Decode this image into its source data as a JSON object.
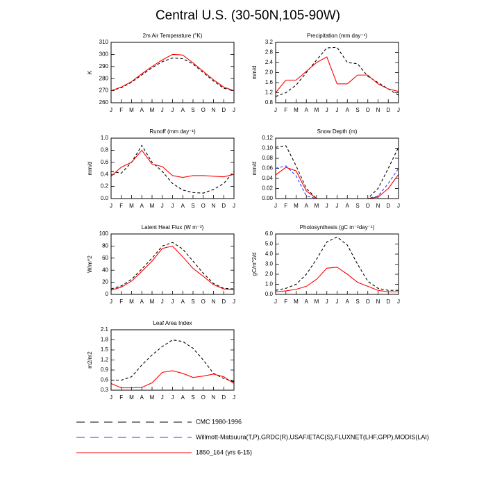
{
  "title": "Central U.S. (30-50N,105-90W)",
  "legend": [
    {
      "name": "CMC 1980-1996",
      "color": "#000000",
      "dash": true
    },
    {
      "name": "Willmott-Matsuura(T,P),GRDC(R),USAF/ETAC(S),FLUXNET(LHF,GPP),MODIS(LAI)",
      "color": "#3333ff",
      "dash": true
    },
    {
      "name": "1850_164 (yrs 6-15)",
      "color": "#ff0000",
      "dash": false
    }
  ],
  "chart_data": [
    {
      "type": "line",
      "title": "2m Air Temperature (°K)",
      "y_label": "K",
      "categories": [
        "J",
        "F",
        "M",
        "A",
        "M",
        "J",
        "J",
        "A",
        "S",
        "O",
        "N",
        "D",
        "J"
      ],
      "ylim": [
        260,
        310
      ],
      "yticks": [
        260,
        270,
        280,
        290,
        300,
        310
      ],
      "series": [
        {
          "color": "#000000",
          "dash": true,
          "values": [
            270,
            272.5,
            277,
            283,
            289,
            294,
            297,
            296.5,
            292,
            285,
            278,
            272,
            270
          ]
        },
        {
          "color": "#ff0000",
          "dash": false,
          "values": [
            270,
            273,
            277.5,
            284,
            290,
            295.5,
            300,
            299.5,
            293,
            286,
            279,
            273,
            270
          ]
        }
      ]
    },
    {
      "type": "line",
      "title": "Precipitation (mm day⁻¹)",
      "y_label": "mm/d",
      "categories": [
        "J",
        "F",
        "M",
        "A",
        "M",
        "J",
        "J",
        "A",
        "S",
        "O",
        "N",
        "D",
        "J"
      ],
      "ylim": [
        0.8,
        3.2
      ],
      "yticks": [
        0.8,
        1.2,
        1.6,
        {
          "value": 2,
          "label": "2.0"
        },
        2.4,
        2.8,
        3.2
      ],
      "series": [
        {
          "color": "#000000",
          "dash": true,
          "values": [
            1.05,
            1.2,
            1.5,
            2.0,
            2.5,
            2.98,
            3.0,
            2.4,
            2.35,
            1.85,
            1.6,
            1.35,
            1.1
          ]
        },
        {
          "color": "#ff0000",
          "dash": false,
          "values": [
            1.2,
            1.7,
            1.7,
            2.05,
            2.4,
            2.62,
            1.55,
            1.55,
            1.9,
            1.9,
            1.55,
            1.35,
            1.25
          ]
        }
      ]
    },
    {
      "type": "line",
      "title": "Runoff (mm day⁻¹)",
      "y_label": "mm/d",
      "categories": [
        "J",
        "F",
        "M",
        "A",
        "M",
        "J",
        "J",
        "A",
        "S",
        "O",
        "N",
        "D",
        "J"
      ],
      "ylim": [
        0,
        1
      ],
      "yticks": [
        {
          "value": 0,
          "label": "0.0"
        },
        0.2,
        0.4,
        0.6,
        0.8,
        {
          "value": 1,
          "label": "1.0"
        }
      ],
      "series": [
        {
          "color": "#000000",
          "dash": true,
          "values": [
            0.45,
            0.42,
            0.6,
            0.88,
            0.6,
            0.45,
            0.25,
            0.14,
            0.1,
            0.09,
            0.15,
            0.25,
            0.45
          ]
        },
        {
          "color": "#ff0000",
          "dash": false,
          "values": [
            0.37,
            0.52,
            0.6,
            0.8,
            0.57,
            0.53,
            0.38,
            0.35,
            0.38,
            0.38,
            0.37,
            0.36,
            0.4
          ]
        }
      ]
    },
    {
      "type": "line",
      "title": "Snow Depth (m)",
      "y_label": "mm/d",
      "categories": [
        "J",
        "F",
        "M",
        "A",
        "M",
        "J",
        "J",
        "A",
        "S",
        "O",
        "N",
        "D",
        "J"
      ],
      "ylim": [
        0,
        0.12
      ],
      "yticks": [
        {
          "value": 0,
          "label": "0.00"
        },
        0.02,
        0.04,
        0.06,
        0.08,
        {
          "value": 0.1,
          "label": "0.10"
        },
        0.12
      ],
      "series": [
        {
          "color": "#000000",
          "dash": true,
          "values": [
            0.102,
            0.105,
            0.065,
            0.02,
            0,
            0,
            0,
            0,
            0,
            0,
            0.02,
            0.06,
            0.102
          ]
        },
        {
          "color": "#3333ff",
          "dash": true,
          "values": [
            0.06,
            0.065,
            0.045,
            0.005,
            0,
            0,
            0,
            0,
            0,
            0,
            0.005,
            0.03,
            0.06
          ]
        },
        {
          "color": "#ff0000",
          "dash": false,
          "values": [
            0.047,
            0.062,
            0.055,
            0.015,
            0,
            0,
            0,
            0,
            0,
            0,
            0.003,
            0.02,
            0.048
          ]
        }
      ]
    },
    {
      "type": "line",
      "title": "Latent Heat Flux (W m⁻²)",
      "y_label": "W/m^2",
      "categories": [
        "J",
        "F",
        "M",
        "A",
        "M",
        "J",
        "J",
        "A",
        "S",
        "O",
        "N",
        "D",
        "J"
      ],
      "ylim": [
        0,
        100
      ],
      "yticks": [
        0,
        20,
        40,
        60,
        80,
        100
      ],
      "series": [
        {
          "color": "#000000",
          "dash": true,
          "values": [
            9,
            14,
            25,
            42,
            60,
            80,
            86,
            75,
            55,
            35,
            18,
            10,
            9
          ]
        },
        {
          "color": "#ff0000",
          "dash": false,
          "values": [
            7,
            12,
            22,
            38,
            55,
            76,
            80,
            62,
            43,
            30,
            16,
            9,
            8
          ]
        }
      ]
    },
    {
      "type": "line",
      "title": "Photosynthesis (gC m⁻²day⁻¹)",
      "y_label": "gC/m^2/d",
      "categories": [
        "J",
        "F",
        "M",
        "A",
        "M",
        "J",
        "J",
        "A",
        "S",
        "O",
        "N",
        "D",
        "J"
      ],
      "ylim": [
        0,
        6
      ],
      "yticks": [
        {
          "value": 0,
          "label": "0.0"
        },
        {
          "value": 1,
          "label": "1.0"
        },
        {
          "value": 2,
          "label": "2.0"
        },
        {
          "value": 3,
          "label": "3.0"
        },
        {
          "value": 4,
          "label": "4.0"
        },
        {
          "value": 5,
          "label": "5.0"
        },
        {
          "value": 6,
          "label": "6.0"
        }
      ],
      "series": [
        {
          "color": "#000000",
          "dash": true,
          "values": [
            0.4,
            0.6,
            1.0,
            2.0,
            3.5,
            5.2,
            5.7,
            4.9,
            3.0,
            1.3,
            0.6,
            0.4,
            0.4
          ]
        },
        {
          "color": "#ff0000",
          "dash": false,
          "values": [
            0.25,
            0.35,
            0.5,
            0.8,
            1.5,
            2.6,
            2.7,
            2.0,
            1.2,
            0.8,
            0.4,
            0.25,
            0.25
          ]
        }
      ]
    },
    {
      "type": "line",
      "title": "Leaf Area Index",
      "y_label": "m2/m2",
      "categories": [
        "J",
        "F",
        "M",
        "A",
        "M",
        "J",
        "J",
        "A",
        "S",
        "O",
        "N",
        "D",
        "J"
      ],
      "ylim": [
        0.3,
        2.1
      ],
      "yticks": [
        0.3,
        0.6,
        0.9,
        1.2,
        1.5,
        1.8,
        2.1
      ],
      "series": [
        {
          "color": "#000000",
          "dash": true,
          "values": [
            0.6,
            0.6,
            0.7,
            1.05,
            1.35,
            1.6,
            1.8,
            1.75,
            1.55,
            1.2,
            0.8,
            0.65,
            0.55
          ]
        },
        {
          "color": "#ff0000",
          "dash": false,
          "values": [
            0.5,
            0.37,
            0.37,
            0.38,
            0.52,
            0.83,
            0.88,
            0.8,
            0.68,
            0.72,
            0.78,
            0.7,
            0.5
          ]
        }
      ]
    }
  ]
}
